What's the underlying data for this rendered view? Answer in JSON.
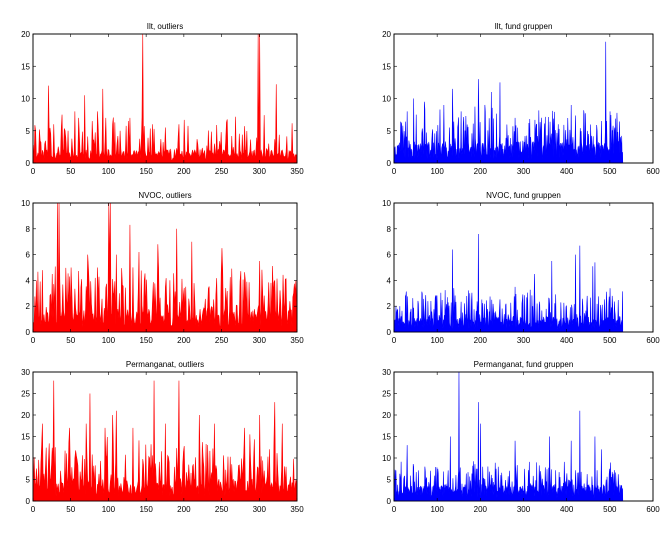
{
  "chart_data": [
    {
      "type": "bar",
      "title": "Ilt, outliers",
      "color": "#ff0000",
      "xlim": [
        0,
        350
      ],
      "ylim": [
        0,
        20
      ],
      "xticks": [
        0,
        50,
        100,
        150,
        200,
        250,
        300,
        350
      ],
      "yticks": [
        0,
        5,
        10,
        15,
        20
      ],
      "n_points": 350,
      "seed": 11,
      "base": 1.4,
      "spike_prob": 0.28,
      "spike_scale": 3.5,
      "values_sparse": [
        [
          10,
          3.2
        ],
        [
          20,
          12
        ],
        [
          27,
          6
        ],
        [
          38,
          7.5
        ],
        [
          46,
          5
        ],
        [
          55,
          8
        ],
        [
          60,
          7
        ],
        [
          68,
          10.5
        ],
        [
          78,
          6.5
        ],
        [
          85,
          8
        ],
        [
          92,
          11.5
        ],
        [
          96,
          7
        ],
        [
          105,
          6
        ],
        [
          115,
          5
        ],
        [
          128,
          7
        ],
        [
          145,
          20
        ],
        [
          158,
          6
        ],
        [
          175,
          5.5
        ],
        [
          193,
          6
        ],
        [
          240,
          3
        ],
        [
          255,
          3.5
        ],
        [
          298,
          20
        ],
        [
          300,
          20
        ],
        [
          312,
          3
        ],
        [
          322,
          12.2
        ],
        [
          330,
          2
        ]
      ]
    },
    {
      "type": "bar",
      "title": "Ilt, fund gruppen",
      "color": "#0000ff",
      "xlim": [
        0,
        600
      ],
      "ylim": [
        0,
        20
      ],
      "xticks": [
        0,
        100,
        200,
        300,
        400,
        500,
        600
      ],
      "yticks": [
        0,
        5,
        10,
        15,
        20
      ],
      "n_points": 530,
      "seed": 23,
      "base": 2.2,
      "spike_prob": 0.33,
      "spike_scale": 3.6,
      "values_sparse": [
        [
          30,
          8
        ],
        [
          45,
          10
        ],
        [
          70,
          9.5
        ],
        [
          115,
          9
        ],
        [
          135,
          11.5
        ],
        [
          155,
          8
        ],
        [
          195,
          13
        ],
        [
          210,
          9
        ],
        [
          225,
          11
        ],
        [
          245,
          12.5
        ],
        [
          280,
          7
        ],
        [
          330,
          6
        ],
        [
          380,
          6
        ],
        [
          410,
          9
        ],
        [
          440,
          7.5
        ],
        [
          470,
          5
        ],
        [
          490,
          18.8
        ],
        [
          500,
          8
        ],
        [
          527,
          4.2
        ]
      ]
    },
    {
      "type": "bar",
      "title": "NVOC, outliers",
      "color": "#ff0000",
      "xlim": [
        0,
        350
      ],
      "ylim": [
        0,
        10
      ],
      "xticks": [
        0,
        50,
        100,
        150,
        200,
        250,
        300,
        350
      ],
      "yticks": [
        0,
        2,
        4,
        6,
        8,
        10
      ],
      "n_points": 350,
      "seed": 37,
      "base": 1.2,
      "spike_prob": 0.45,
      "spike_scale": 2.3,
      "values_sparse": [
        [
          12,
          4.8
        ],
        [
          25,
          4.5
        ],
        [
          32,
          10
        ],
        [
          34,
          10
        ],
        [
          50,
          5
        ],
        [
          72,
          6
        ],
        [
          85,
          5
        ],
        [
          100,
          10
        ],
        [
          102,
          10
        ],
        [
          110,
          6
        ],
        [
          128,
          8.3
        ],
        [
          140,
          6.2
        ],
        [
          165,
          6.8
        ],
        [
          190,
          8
        ],
        [
          210,
          7
        ],
        [
          250,
          6.5
        ],
        [
          300,
          5.5
        ],
        [
          320,
          4
        ]
      ]
    },
    {
      "type": "bar",
      "title": "NVOC, fund gruppen",
      "color": "#0000ff",
      "xlim": [
        0,
        600
      ],
      "ylim": [
        0,
        10
      ],
      "xticks": [
        0,
        100,
        200,
        300,
        400,
        500,
        600
      ],
      "yticks": [
        0,
        2,
        4,
        6,
        8,
        10
      ],
      "n_points": 530,
      "seed": 53,
      "base": 0.8,
      "spike_prob": 0.35,
      "spike_scale": 1.5,
      "values_sparse": [
        [
          85,
          2.4
        ],
        [
          135,
          6.4
        ],
        [
          175,
          3
        ],
        [
          195,
          7.6
        ],
        [
          280,
          3.5
        ],
        [
          325,
          4.5
        ],
        [
          365,
          5.5
        ],
        [
          420,
          6
        ],
        [
          430,
          6.7
        ],
        [
          460,
          5.1
        ],
        [
          465,
          5.4
        ],
        [
          505,
          2.8
        ]
      ]
    },
    {
      "type": "bar",
      "title": "Permanganat, outliers",
      "color": "#ff0000",
      "xlim": [
        0,
        350
      ],
      "ylim": [
        0,
        30
      ],
      "xticks": [
        0,
        50,
        100,
        150,
        200,
        250,
        300,
        350
      ],
      "yticks": [
        0,
        5,
        10,
        15,
        20,
        25,
        30
      ],
      "n_points": 350,
      "seed": 71,
      "base": 3.5,
      "spike_prob": 0.42,
      "spike_scale": 6.5,
      "values_sparse": [
        [
          12,
          18
        ],
        [
          27,
          28
        ],
        [
          48,
          17
        ],
        [
          70,
          18
        ],
        [
          75,
          25
        ],
        [
          95,
          17
        ],
        [
          105,
          20
        ],
        [
          110,
          21
        ],
        [
          132,
          17
        ],
        [
          160,
          28
        ],
        [
          175,
          18
        ],
        [
          193,
          28
        ],
        [
          220,
          20
        ],
        [
          240,
          18
        ],
        [
          280,
          17
        ],
        [
          300,
          20
        ],
        [
          320,
          23
        ],
        [
          330,
          18
        ]
      ]
    },
    {
      "type": "bar",
      "title": "Permanganat, fund gruppen",
      "color": "#0000ff",
      "xlim": [
        0,
        600
      ],
      "ylim": [
        0,
        30
      ],
      "xticks": [
        0,
        100,
        200,
        300,
        400,
        500,
        600
      ],
      "yticks": [
        0,
        5,
        10,
        15,
        20,
        25,
        30
      ],
      "n_points": 530,
      "seed": 89,
      "base": 2.6,
      "spike_prob": 0.35,
      "spike_scale": 3.8,
      "values_sparse": [
        [
          30,
          13
        ],
        [
          130,
          15
        ],
        [
          150,
          30
        ],
        [
          195,
          23
        ],
        [
          200,
          18
        ],
        [
          280,
          14
        ],
        [
          360,
          15
        ],
        [
          410,
          14
        ],
        [
          430,
          21
        ],
        [
          465,
          15
        ],
        [
          480,
          12
        ],
        [
          520,
          4
        ]
      ]
    }
  ]
}
